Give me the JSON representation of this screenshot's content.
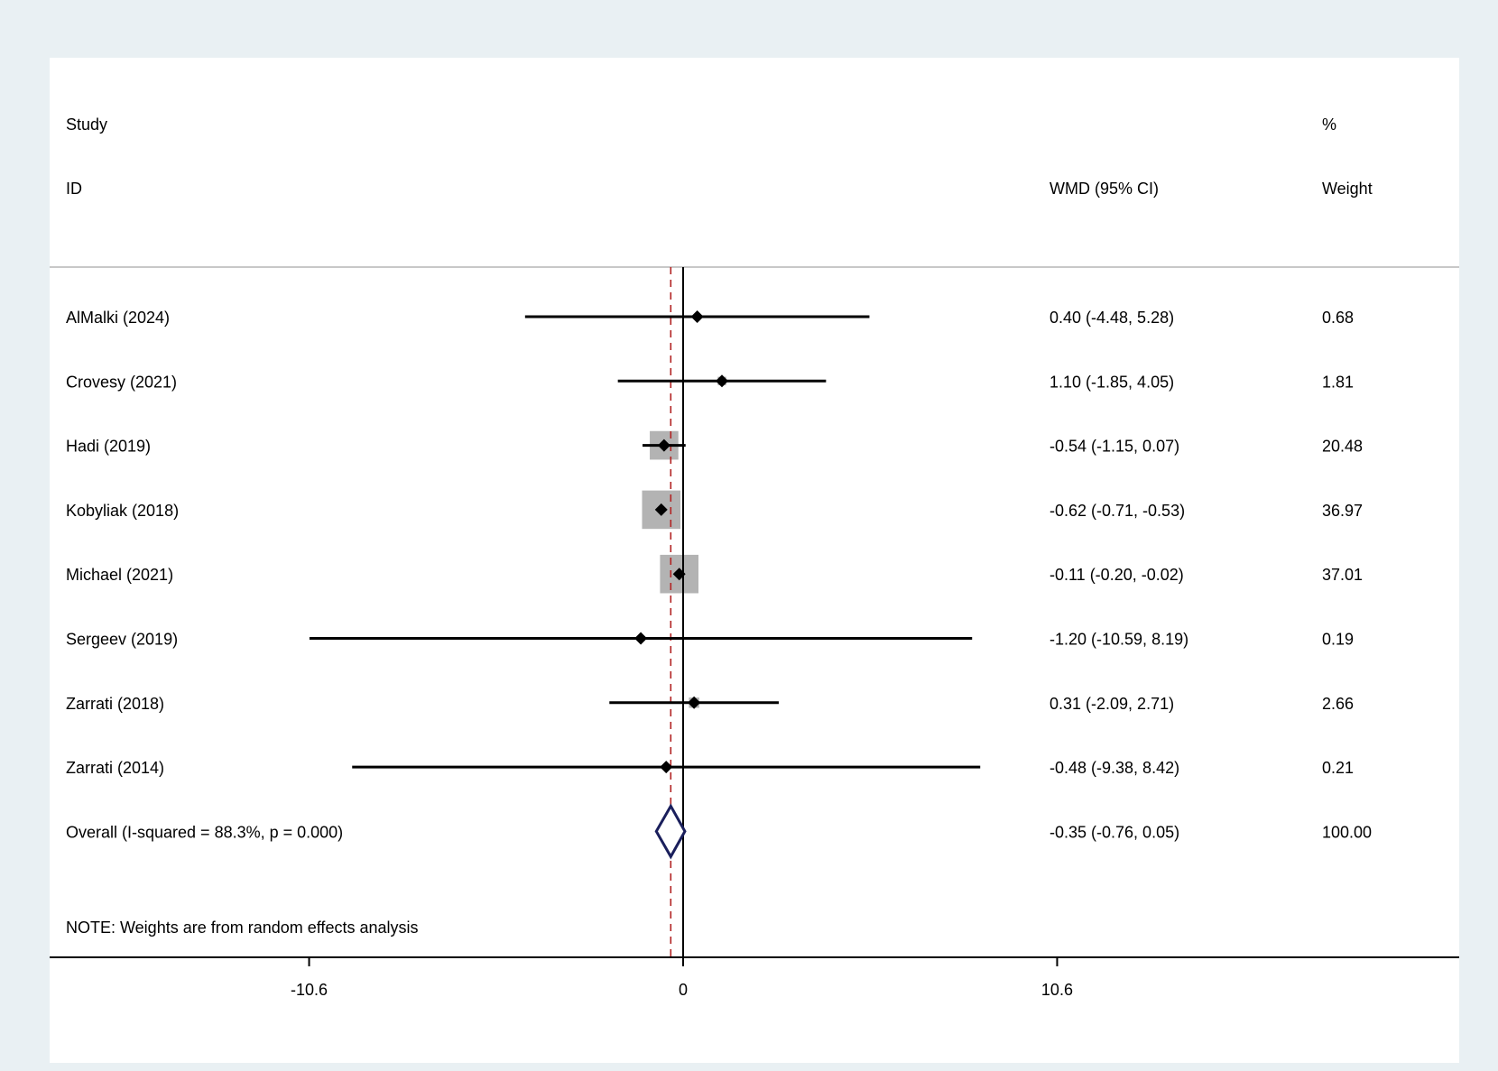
{
  "chart_data": {
    "type": "forest",
    "header": {
      "study_line1": "Study",
      "study_line2": "ID",
      "effect_label": "WMD (95% CI)",
      "weight_line1": "%",
      "weight_line2": "Weight"
    },
    "studies": [
      {
        "name": "AlMalki (2024)",
        "est": 0.4,
        "lo": -4.48,
        "hi": 5.28,
        "ci_text": "0.40 (-4.48, 5.28)",
        "weight": 0.68,
        "weight_text": "0.68"
      },
      {
        "name": "Crovesy (2021)",
        "est": 1.1,
        "lo": -1.85,
        "hi": 4.05,
        "ci_text": "1.10 (-1.85, 4.05)",
        "weight": 1.81,
        "weight_text": "1.81"
      },
      {
        "name": "Hadi (2019)",
        "est": -0.54,
        "lo": -1.15,
        "hi": 0.07,
        "ci_text": "-0.54 (-1.15, 0.07)",
        "weight": 20.48,
        "weight_text": "20.48"
      },
      {
        "name": "Kobyliak (2018)",
        "est": -0.62,
        "lo": -0.71,
        "hi": -0.53,
        "ci_text": "-0.62 (-0.71, -0.53)",
        "weight": 36.97,
        "weight_text": "36.97"
      },
      {
        "name": "Michael (2021)",
        "est": -0.11,
        "lo": -0.2,
        "hi": -0.02,
        "ci_text": "-0.11 (-0.20, -0.02)",
        "weight": 37.01,
        "weight_text": "37.01"
      },
      {
        "name": "Sergeev (2019)",
        "est": -1.2,
        "lo": -10.59,
        "hi": 8.19,
        "ci_text": "-1.20 (-10.59, 8.19)",
        "weight": 0.19,
        "weight_text": "0.19"
      },
      {
        "name": "Zarrati (2018)",
        "est": 0.31,
        "lo": -2.09,
        "hi": 2.71,
        "ci_text": "0.31 (-2.09, 2.71)",
        "weight": 2.66,
        "weight_text": "2.66"
      },
      {
        "name": "Zarrati (2014)",
        "est": -0.48,
        "lo": -9.38,
        "hi": 8.42,
        "ci_text": "-0.48 (-9.38, 8.42)",
        "weight": 0.21,
        "weight_text": "0.21"
      }
    ],
    "overall": {
      "label": "Overall  (I-squared = 88.3%, p = 0.000)",
      "est": -0.35,
      "lo": -0.76,
      "hi": 0.05,
      "ci_text": "-0.35 (-0.76, 0.05)",
      "weight_text": "100.00"
    },
    "note": "NOTE: Weights are from random effects analysis",
    "x_ticks": [
      {
        "value": -10.6,
        "label": "-10.6"
      },
      {
        "value": 0,
        "label": "0"
      },
      {
        "value": 10.6,
        "label": "10.6"
      }
    ],
    "xlim": [
      -10.6,
      10.6
    ],
    "colors": {
      "box": "#b3b3b3",
      "point": "#000000",
      "ci_line": "#000000",
      "null_line": "#000000",
      "overall_line": "#b22222",
      "overall_diamond": "#1a1f5c"
    }
  }
}
